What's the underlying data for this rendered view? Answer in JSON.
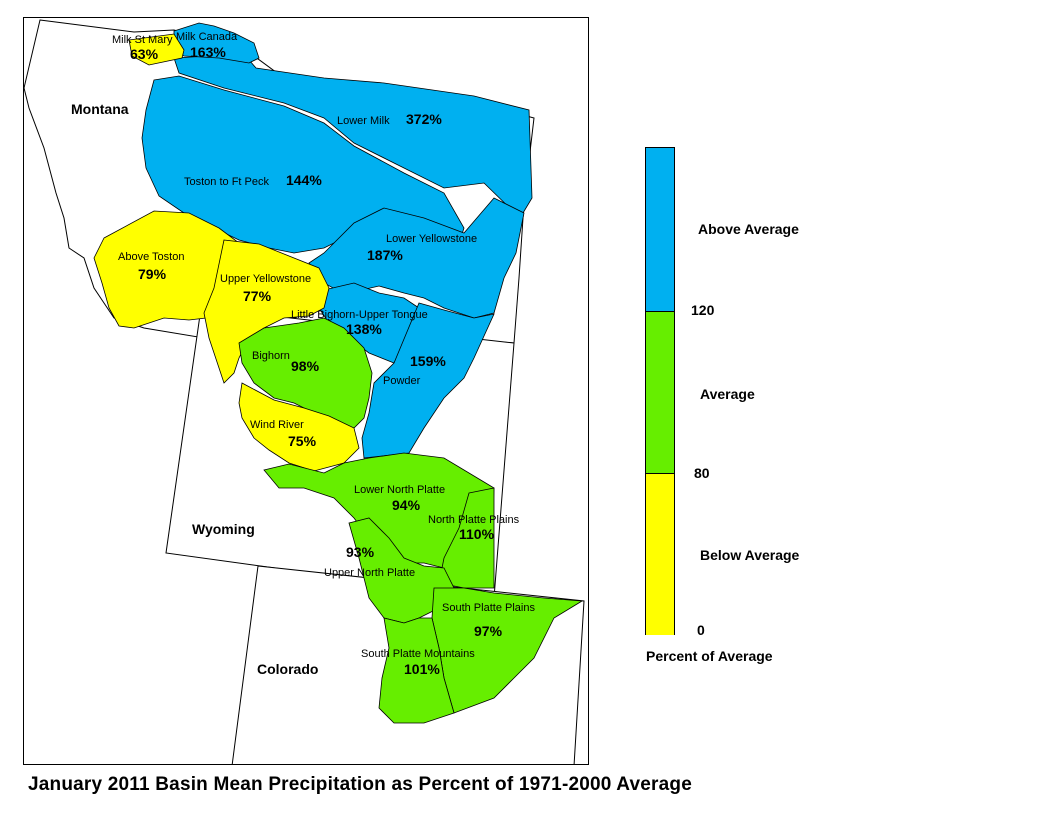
{
  "title": "January 2011 Basin Mean Precipitation as Percent of 1971-2000 Average",
  "colors": {
    "above": "#00b0f0",
    "average": "#66ee00",
    "below": "#ffff00",
    "none": "#ffffff",
    "outline": "#000000"
  },
  "states": [
    {
      "id": "montana",
      "label": "Montana"
    },
    {
      "id": "wyoming",
      "label": "Wyoming"
    },
    {
      "id": "colorado",
      "label": "Colorado"
    }
  ],
  "basins": [
    {
      "id": "milk-st-mary",
      "name": "Milk St Mary",
      "percent": "63%",
      "category": "below"
    },
    {
      "id": "milk-canada",
      "name": "Milk Canada",
      "percent": "163%",
      "category": "above"
    },
    {
      "id": "lower-milk",
      "name": "Lower Milk",
      "percent": "372%",
      "category": "above"
    },
    {
      "id": "toston-ft-peck",
      "name": "Toston to Ft Peck",
      "percent": "144%",
      "category": "above"
    },
    {
      "id": "lower-yellowstone",
      "name": "Lower Yellowstone",
      "percent": "187%",
      "category": "above"
    },
    {
      "id": "above-toston",
      "name": "Above Toston",
      "percent": "79%",
      "category": "below"
    },
    {
      "id": "upper-yellowstone",
      "name": "Upper Yellowstone",
      "percent": "77%",
      "category": "below"
    },
    {
      "id": "little-bighorn-upper-tongue",
      "name": "Little Bighorn-Upper Tongue",
      "percent": "138%",
      "category": "above"
    },
    {
      "id": "bighorn",
      "name": "Bighorn",
      "percent": "98%",
      "category": "average"
    },
    {
      "id": "powder",
      "name": "Powder",
      "percent": "159%",
      "category": "above"
    },
    {
      "id": "wind-river",
      "name": "Wind River",
      "percent": "75%",
      "category": "below"
    },
    {
      "id": "lower-north-platte",
      "name": "Lower North Platte",
      "percent": "94%",
      "category": "average"
    },
    {
      "id": "north-platte-plains",
      "name": "North Platte Plains",
      "percent": "110%",
      "category": "average"
    },
    {
      "id": "upper-north-platte",
      "name": "Upper North Platte",
      "percent": "93%",
      "category": "average"
    },
    {
      "id": "south-platte-plains",
      "name": "South Platte Plains",
      "percent": "97%",
      "category": "average"
    },
    {
      "id": "south-platte-mountains",
      "name": "South Platte Mountains",
      "percent": "101%",
      "category": "average"
    }
  ],
  "legend": {
    "caption": "Percent of Average",
    "categories": [
      {
        "id": "above",
        "label": "Above Average",
        "from": 120,
        "to": null
      },
      {
        "id": "average",
        "label": "Average",
        "from": 80,
        "to": 120
      },
      {
        "id": "below",
        "label": "Below Average",
        "from": 0,
        "to": 80
      }
    ],
    "ticks": [
      "120",
      "80",
      "0"
    ]
  }
}
